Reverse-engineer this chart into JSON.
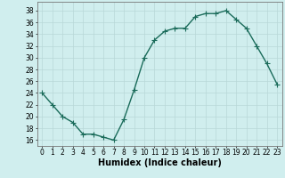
{
  "x": [
    0,
    1,
    2,
    3,
    4,
    5,
    6,
    7,
    8,
    9,
    10,
    11,
    12,
    13,
    14,
    15,
    16,
    17,
    18,
    19,
    20,
    21,
    22,
    23
  ],
  "y": [
    24,
    22,
    20,
    19,
    17,
    17,
    16.5,
    16,
    19.5,
    24.5,
    30,
    33,
    34.5,
    35,
    35,
    37,
    37.5,
    37.5,
    38,
    36.5,
    35,
    32,
    29,
    25.5
  ],
  "line_color": "#1a6b5a",
  "marker": "+",
  "marker_size": 4,
  "bg_color": "#d0eeee",
  "grid_color": "#b8d8d8",
  "xlabel": "Humidex (Indice chaleur)",
  "ylim": [
    15,
    39.5
  ],
  "xlim": [
    -0.5,
    23.5
  ],
  "yticks": [
    16,
    18,
    20,
    22,
    24,
    26,
    28,
    30,
    32,
    34,
    36,
    38
  ],
  "xticks": [
    0,
    1,
    2,
    3,
    4,
    5,
    6,
    7,
    8,
    9,
    10,
    11,
    12,
    13,
    14,
    15,
    16,
    17,
    18,
    19,
    20,
    21,
    22,
    23
  ],
  "xtick_labels": [
    "0",
    "1",
    "2",
    "3",
    "4",
    "5",
    "6",
    "7",
    "8",
    "9",
    "10",
    "11",
    "12",
    "13",
    "14",
    "15",
    "16",
    "17",
    "18",
    "19",
    "20",
    "21",
    "22",
    "23"
  ],
  "xlabel_fontsize": 7,
  "tick_fontsize": 5.5,
  "line_width": 1.0,
  "marker_edge_width": 0.8
}
